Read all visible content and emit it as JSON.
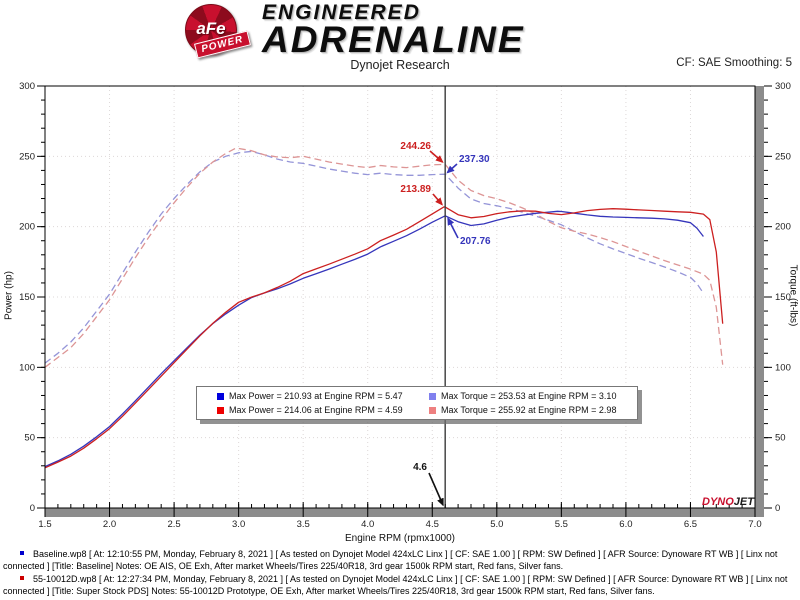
{
  "header": {
    "logo_brand": "aFe",
    "logo_sub": "POWER",
    "title_line1": "ENGINEERED",
    "title_line2": "ADRENALINE",
    "subtitle": "Dynojet Research",
    "smoothing": "CF: SAE Smoothing: 5"
  },
  "chart_data": {
    "type": "line",
    "xlabel": "Engine RPM (rpmx1000)",
    "ylabel_left": "Power (hp)",
    "ylabel_right": "Torque (ft-lbs)",
    "x_range": [
      1.5,
      7.0
    ],
    "y_range": [
      0,
      300
    ],
    "x_ticks": [
      1.5,
      2.0,
      2.5,
      3.0,
      3.5,
      4.0,
      4.5,
      5.0,
      5.5,
      6.0,
      6.5,
      7.0
    ],
    "y_ticks": [
      0,
      50,
      100,
      150,
      200,
      250,
      300
    ],
    "x_minor_step": 0.1,
    "y_minor_step": 10,
    "grid": true,
    "legend_position": "bottom-center",
    "cursor_rpm": 4.6,
    "watermark_part1": "DYNO",
    "watermark_part2": "JET",
    "series": [
      {
        "name": "Baseline Torque",
        "unit": "ft-lbs",
        "color": "#9595d8",
        "style": "dashed",
        "points": [
          [
            1.5,
            103
          ],
          [
            1.6,
            110
          ],
          [
            1.7,
            118
          ],
          [
            1.8,
            128
          ],
          [
            1.9,
            140
          ],
          [
            2.0,
            152
          ],
          [
            2.1,
            167
          ],
          [
            2.2,
            182
          ],
          [
            2.3,
            196
          ],
          [
            2.4,
            209
          ],
          [
            2.5,
            220
          ],
          [
            2.6,
            230
          ],
          [
            2.7,
            239
          ],
          [
            2.8,
            246
          ],
          [
            2.9,
            250
          ],
          [
            3.0,
            252.5
          ],
          [
            3.1,
            253.53
          ],
          [
            3.2,
            251
          ],
          [
            3.3,
            248
          ],
          [
            3.4,
            246
          ],
          [
            3.5,
            245
          ],
          [
            3.6,
            243
          ],
          [
            3.7,
            241
          ],
          [
            3.8,
            239.5
          ],
          [
            3.9,
            238
          ],
          [
            4.0,
            237
          ],
          [
            4.1,
            238
          ],
          [
            4.2,
            237
          ],
          [
            4.3,
            236.5
          ],
          [
            4.4,
            236.5
          ],
          [
            4.5,
            237
          ],
          [
            4.6,
            237.3
          ],
          [
            4.7,
            227.4
          ],
          [
            4.8,
            219.7
          ],
          [
            4.9,
            216.5
          ],
          [
            5.0,
            214.8
          ],
          [
            5.1,
            213.0
          ],
          [
            5.2,
            210.3
          ],
          [
            5.3,
            207.6
          ],
          [
            5.4,
            204.5
          ],
          [
            5.5,
            201.3
          ],
          [
            5.6,
            196.6
          ],
          [
            5.7,
            192.0
          ],
          [
            5.8,
            187.8
          ],
          [
            5.9,
            184.2
          ],
          [
            6.0,
            180.9
          ],
          [
            6.1,
            177.6
          ],
          [
            6.2,
            174.5
          ],
          [
            6.3,
            171.3
          ],
          [
            6.4,
            167.9
          ],
          [
            6.5,
            163.9
          ],
          [
            6.55,
            159.5
          ],
          [
            6.6,
            152.7
          ]
        ]
      },
      {
        "name": "Super Stock PDS Torque",
        "unit": "ft-lbs",
        "color": "#dd9595",
        "style": "dashed",
        "points": [
          [
            1.5,
            100
          ],
          [
            1.6,
            107
          ],
          [
            1.7,
            114
          ],
          [
            1.8,
            124
          ],
          [
            1.9,
            136
          ],
          [
            2.0,
            148
          ],
          [
            2.1,
            163
          ],
          [
            2.2,
            178
          ],
          [
            2.3,
            192
          ],
          [
            2.4,
            205
          ],
          [
            2.5,
            217
          ],
          [
            2.6,
            228
          ],
          [
            2.7,
            238
          ],
          [
            2.8,
            246
          ],
          [
            2.9,
            252
          ],
          [
            2.98,
            255.92
          ],
          [
            3.1,
            254
          ],
          [
            3.2,
            251
          ],
          [
            3.3,
            249.5
          ],
          [
            3.4,
            249
          ],
          [
            3.5,
            250
          ],
          [
            3.6,
            248
          ],
          [
            3.7,
            246
          ],
          [
            3.8,
            244.5
          ],
          [
            3.9,
            243
          ],
          [
            4.0,
            242
          ],
          [
            4.1,
            243.5
          ],
          [
            4.2,
            242.5
          ],
          [
            4.3,
            242
          ],
          [
            4.4,
            243
          ],
          [
            4.5,
            244
          ],
          [
            4.6,
            244.26
          ],
          [
            4.7,
            233.0
          ],
          [
            4.8,
            225.7
          ],
          [
            4.9,
            222.1
          ],
          [
            5.0,
            219.9
          ],
          [
            5.1,
            216.9
          ],
          [
            5.2,
            213.3
          ],
          [
            5.3,
            209.1
          ],
          [
            5.4,
            203.7
          ],
          [
            5.5,
            199.2
          ],
          [
            5.6,
            196.8
          ],
          [
            5.7,
            194.8
          ],
          [
            5.8,
            192.2
          ],
          [
            5.9,
            189.4
          ],
          [
            6.0,
            185.9
          ],
          [
            6.1,
            182.5
          ],
          [
            6.2,
            179.2
          ],
          [
            6.3,
            175.9
          ],
          [
            6.4,
            172.8
          ],
          [
            6.5,
            169.8
          ],
          [
            6.6,
            166.2
          ],
          [
            6.65,
            161.9
          ],
          [
            6.7,
            142.7
          ],
          [
            6.75,
            101.9
          ]
        ]
      },
      {
        "name": "Baseline Power",
        "unit": "hp",
        "color": "#3535bb",
        "style": "solid",
        "points": [
          [
            1.5,
            29.4
          ],
          [
            1.6,
            33.5
          ],
          [
            1.7,
            38.2
          ],
          [
            1.8,
            43.9
          ],
          [
            1.9,
            50.6
          ],
          [
            2.0,
            57.9
          ],
          [
            2.1,
            66.8
          ],
          [
            2.2,
            76.2
          ],
          [
            2.3,
            85.8
          ],
          [
            2.4,
            95.5
          ],
          [
            2.5,
            104.7
          ],
          [
            2.6,
            113.9
          ],
          [
            2.7,
            122.9
          ],
          [
            2.8,
            131.1
          ],
          [
            2.9,
            138.0
          ],
          [
            3.0,
            144.2
          ],
          [
            3.1,
            149.6
          ],
          [
            3.2,
            152.9
          ],
          [
            3.3,
            155.8
          ],
          [
            3.4,
            159.3
          ],
          [
            3.5,
            163.3
          ],
          [
            3.6,
            166.5
          ],
          [
            3.7,
            169.8
          ],
          [
            3.8,
            173.3
          ],
          [
            3.9,
            176.7
          ],
          [
            4.0,
            180.5
          ],
          [
            4.1,
            185.7
          ],
          [
            4.2,
            189.6
          ],
          [
            4.3,
            193.6
          ],
          [
            4.4,
            198.2
          ],
          [
            4.5,
            203.2
          ],
          [
            4.6,
            207.76
          ],
          [
            4.7,
            203.5
          ],
          [
            4.8,
            200.8
          ],
          [
            4.9,
            202.0
          ],
          [
            5.0,
            204.5
          ],
          [
            5.1,
            206.8
          ],
          [
            5.2,
            208.2
          ],
          [
            5.3,
            209.5
          ],
          [
            5.4,
            210.3
          ],
          [
            5.47,
            210.93
          ],
          [
            5.5,
            210.8
          ],
          [
            5.6,
            209.6
          ],
          [
            5.7,
            208.4
          ],
          [
            5.8,
            207.4
          ],
          [
            5.9,
            206.9
          ],
          [
            6.0,
            206.6
          ],
          [
            6.1,
            206.3
          ],
          [
            6.2,
            206.0
          ],
          [
            6.3,
            205.5
          ],
          [
            6.4,
            204.6
          ],
          [
            6.5,
            202.8
          ],
          [
            6.55,
            199.0
          ],
          [
            6.6,
            193.0
          ]
        ]
      },
      {
        "name": "Super Stock PDS Power",
        "unit": "hp",
        "color": "#cc2020",
        "style": "solid",
        "points": [
          [
            1.5,
            28.6
          ],
          [
            1.6,
            32.6
          ],
          [
            1.7,
            36.9
          ],
          [
            1.8,
            42.5
          ],
          [
            1.9,
            49.2
          ],
          [
            2.0,
            56.4
          ],
          [
            2.1,
            65.2
          ],
          [
            2.2,
            74.6
          ],
          [
            2.3,
            84.1
          ],
          [
            2.4,
            93.7
          ],
          [
            2.5,
            103.3
          ],
          [
            2.6,
            112.9
          ],
          [
            2.7,
            122.4
          ],
          [
            2.8,
            131.2
          ],
          [
            2.9,
            139.1
          ],
          [
            3.0,
            146.2
          ],
          [
            3.1,
            149.9
          ],
          [
            3.2,
            152.9
          ],
          [
            3.3,
            156.8
          ],
          [
            3.4,
            161.2
          ],
          [
            3.5,
            166.6
          ],
          [
            3.6,
            170.0
          ],
          [
            3.7,
            173.3
          ],
          [
            3.8,
            176.9
          ],
          [
            3.9,
            180.4
          ],
          [
            4.0,
            184.3
          ],
          [
            4.1,
            190.1
          ],
          [
            4.2,
            194.0
          ],
          [
            4.3,
            198.1
          ],
          [
            4.4,
            203.5
          ],
          [
            4.5,
            209.1
          ],
          [
            4.59,
            214.06
          ],
          [
            4.6,
            213.89
          ],
          [
            4.7,
            208.5
          ],
          [
            4.8,
            206.3
          ],
          [
            4.9,
            207.2
          ],
          [
            5.0,
            209.3
          ],
          [
            5.1,
            210.6
          ],
          [
            5.2,
            211.2
          ],
          [
            5.3,
            211.0
          ],
          [
            5.4,
            209.4
          ],
          [
            5.5,
            208.6
          ],
          [
            5.6,
            209.8
          ],
          [
            5.7,
            211.4
          ],
          [
            5.8,
            212.3
          ],
          [
            5.9,
            212.8
          ],
          [
            6.0,
            212.4
          ],
          [
            6.1,
            211.9
          ],
          [
            6.2,
            211.5
          ],
          [
            6.3,
            211.0
          ],
          [
            6.4,
            210.6
          ],
          [
            6.5,
            210.2
          ],
          [
            6.6,
            208.9
          ],
          [
            6.65,
            205.0
          ],
          [
            6.7,
            182.0
          ],
          [
            6.75,
            131.0
          ]
        ]
      }
    ],
    "annotations": [
      {
        "label": "244.26",
        "color": "#cc2020",
        "text": [
          431,
          71
        ],
        "anchor": "end",
        "arrow": [
          430,
          73,
          442.5,
          84
        ]
      },
      {
        "label": "237.30",
        "color": "#3535bb",
        "text": [
          459,
          84
        ],
        "anchor": "start",
        "arrow": [
          457,
          86,
          447.5,
          94.5
        ]
      },
      {
        "label": "213.89",
        "color": "#cc2020",
        "text": [
          431,
          114
        ],
        "anchor": "end",
        "arrow": [
          433,
          116,
          442,
          126.5
        ]
      },
      {
        "label": "207.76",
        "color": "#3535bb",
        "text": [
          460,
          166
        ],
        "anchor": "start",
        "arrow": [
          458,
          160,
          448,
          140.5
        ]
      },
      {
        "label": "4.6",
        "color": "#111111",
        "text": [
          427,
          392
        ],
        "anchor": "end",
        "arrow": [
          429,
          395,
          443,
          427
        ]
      }
    ]
  },
  "legend": {
    "entries": [
      {
        "color": "#0000dd",
        "label": "Max Power = 210.93 at Engine RPM = 5.47"
      },
      {
        "color": "#8080ee",
        "label": "Max Torque = 253.53 at Engine RPM = 3.10"
      },
      {
        "color": "#ee0000",
        "label": "Max Power = 214.06 at Engine RPM = 4.59"
      },
      {
        "color": "#ee8080",
        "label": "Max Torque = 255.92 at Engine RPM = 2.98"
      }
    ]
  },
  "notes": [
    {
      "color": "#0000cc",
      "text": "Baseline.wp8 [ At: 12:10:55 PM, Monday, February 8, 2021 ] [ As tested on Dynojet Model 424xLC Linx ] [ CF: SAE 1.00 ] [ RPM: SW Defined ] [ AFR Source: Dynoware RT WB ] [ Linx not connected ] [Title: Baseline]  Notes: OE AIS, OE Exh, After market Wheels/Tires 225/40R18, 3rd gear 1500k RPM start, Red fans, Silver fans."
    },
    {
      "color": "#cc0000",
      "text": "55-10012D.wp8 [ At: 12:27:34 PM, Monday, February 8, 2021 ] [ As tested on Dynojet Model 424xLC Linx ] [ CF: SAE 1.00 ] [ RPM: SW Defined ] [ AFR Source: Dynoware RT WB ] [ Linx not connected ] [Title: Super Stock PDS] Notes: 55-10012D Prototype, OE Exh, After market Wheels/Tires 225/40R18, 3rd gear 1500k RPM start, Red fans, Silver fans."
    }
  ]
}
